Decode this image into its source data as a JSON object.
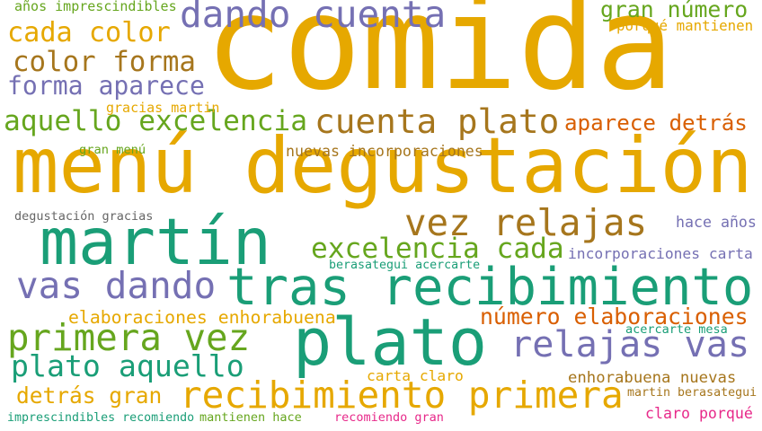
{
  "palette": {
    "amber": "#e6a800",
    "green": "#1a9e77",
    "lime": "#66a61e",
    "purple": "#7570b3",
    "brown": "#a6761d",
    "orange": "#d95f02",
    "pink": "#e7298a",
    "gray": "#666666"
  },
  "words": [
    {
      "text": "comida",
      "color": "amber"
    },
    {
      "text": "menú degustación",
      "color": "amber"
    },
    {
      "text": "martín",
      "color": "green"
    },
    {
      "text": "plato",
      "color": "green"
    },
    {
      "text": "tras recibimiento",
      "color": "green"
    },
    {
      "text": "recibimiento primera",
      "color": "amber"
    },
    {
      "text": "primera vez",
      "color": "lime"
    },
    {
      "text": "dando cuenta",
      "color": "purple"
    },
    {
      "text": "cuenta plato",
      "color": "brown"
    },
    {
      "text": "vez relajas",
      "color": "brown"
    },
    {
      "text": "relajas vas",
      "color": "purple"
    },
    {
      "text": "vas dando",
      "color": "purple"
    },
    {
      "text": "plato aquello",
      "color": "green"
    },
    {
      "text": "aquello excelencia",
      "color": "lime"
    },
    {
      "text": "cada color",
      "color": "amber"
    },
    {
      "text": "color forma",
      "color": "brown"
    },
    {
      "text": "forma aparece",
      "color": "purple"
    },
    {
      "text": "excelencia cada",
      "color": "lime"
    },
    {
      "text": "gran número",
      "color": "lime"
    },
    {
      "text": "aparece detrás",
      "color": "orange"
    },
    {
      "text": "número elaboraciones",
      "color": "orange"
    },
    {
      "text": "detrás gran",
      "color": "amber"
    },
    {
      "text": "enhorabuena nuevas",
      "color": "brown"
    },
    {
      "text": "elaboraciones enhorabuena",
      "color": "amber"
    },
    {
      "text": "nuevas incorporaciones",
      "color": "brown"
    },
    {
      "text": "incorporaciones carta",
      "color": "purple"
    },
    {
      "text": "años imprescindibles",
      "color": "lime"
    },
    {
      "text": "porqué mantienen",
      "color": "amber"
    },
    {
      "text": "gracias martin",
      "color": "amber"
    },
    {
      "text": "gran menú",
      "color": "lime"
    },
    {
      "text": "degustación gracias",
      "color": "gray"
    },
    {
      "text": "hace años",
      "color": "purple"
    },
    {
      "text": "berasategui acercarte",
      "color": "green"
    },
    {
      "text": "acercarte mesa",
      "color": "green"
    },
    {
      "text": "carta claro",
      "color": "amber"
    },
    {
      "text": "martin berasategui",
      "color": "brown"
    },
    {
      "text": "imprescindibles recomiendo",
      "color": "green"
    },
    {
      "text": "mantienen hace",
      "color": "lime"
    },
    {
      "text": "recomiendo gran",
      "color": "pink"
    },
    {
      "text": "claro porqué",
      "color": "pink"
    }
  ]
}
